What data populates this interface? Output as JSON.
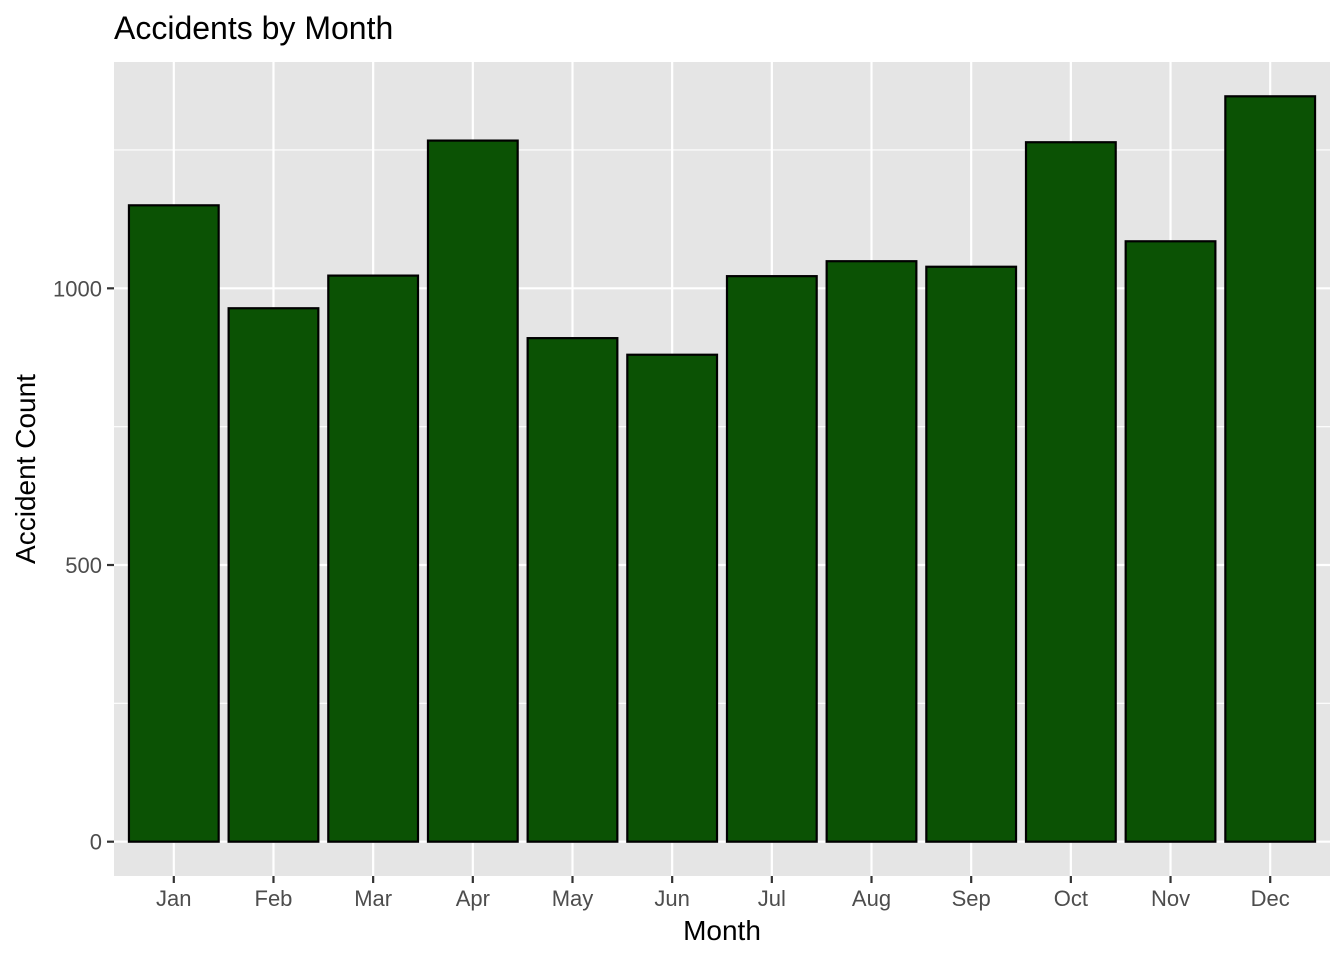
{
  "chart_data": {
    "type": "bar",
    "title": "Accidents by Month",
    "xlabel": "Month",
    "ylabel": "Accident Count",
    "categories": [
      "Jan",
      "Feb",
      "Mar",
      "Apr",
      "May",
      "Jun",
      "Jul",
      "Aug",
      "Sep",
      "Oct",
      "Nov",
      "Dec"
    ],
    "values": [
      1150,
      964,
      1023,
      1267,
      910,
      880,
      1022,
      1049,
      1039,
      1264,
      1085,
      1347
    ],
    "ylim": [
      -62,
      1409
    ],
    "yticks": [
      0,
      500,
      1000
    ],
    "yticks_minor": [
      250,
      750,
      1250
    ],
    "ytick_labels": [
      "0",
      "500",
      "1000"
    ],
    "grid": true,
    "legend": "none",
    "colors": {
      "bar_fill": "#0B5204",
      "bar_stroke": "#000000",
      "panel_background": "#E5E5E5",
      "grid": "#FFFFFF",
      "tick": "#333333"
    }
  }
}
